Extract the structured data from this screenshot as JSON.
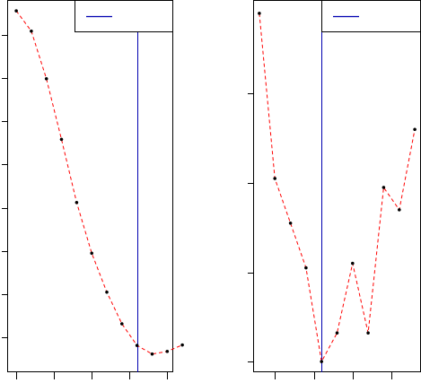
{
  "chart_data": [
    {
      "type": "line",
      "x": [
        1,
        2,
        3,
        4,
        5,
        6,
        7,
        8,
        9,
        10,
        11
      ],
      "series": [
        {
          "values": [
            10.55,
            10.08,
            8.98,
            7.58,
            6.12,
            4.95,
            4.05,
            3.32,
            2.82,
            2.62,
            2.68,
            2.83
          ],
          "x": [
            0.0,
            1.0,
            2.0,
            3.0,
            4.0,
            5.0,
            6.0,
            7.0,
            8.0,
            9.0,
            10.0,
            11.0
          ],
          "color": "#ff0000",
          "line_style": "dashed"
        }
      ],
      "reference_line": {
        "orientation": "vertical",
        "x": 8.0,
        "color": "#0000b0"
      },
      "legend": {
        "position": "top-right",
        "entries": [
          {
            "color": "#0000b0"
          }
        ]
      },
      "xlim": [
        -0.6,
        10.4
      ],
      "ylim": [
        2.2,
        10.8
      ],
      "x_ticks": [
        0,
        2.5,
        5,
        7.5,
        10
      ],
      "y_ticks": [
        3,
        4,
        5,
        6,
        7,
        8,
        9,
        10
      ],
      "grid": false
    },
    {
      "type": "line",
      "series": [
        {
          "values": [
            39.0,
            20.5,
            15.5,
            10.5,
            0.0,
            3.2,
            11.0,
            3.2,
            19.5,
            17.0,
            26.0
          ],
          "x": [
            0,
            1,
            2,
            3,
            4,
            5,
            6,
            7,
            8,
            9,
            10
          ],
          "color": "#ff0000",
          "line_style": "dashed"
        }
      ],
      "reference_line": {
        "orientation": "vertical",
        "x": 4.0,
        "color": "#0000b0"
      },
      "legend": {
        "position": "top-right",
        "entries": [
          {
            "color": "#0000b0"
          }
        ]
      },
      "xlim": [
        -0.4,
        10.4
      ],
      "ylim": [
        -1.2,
        40.5
      ],
      "x_ticks": [
        1,
        3.5,
        6,
        8.5
      ],
      "y_ticks": [
        0,
        10,
        20,
        30
      ],
      "grid": false
    }
  ]
}
